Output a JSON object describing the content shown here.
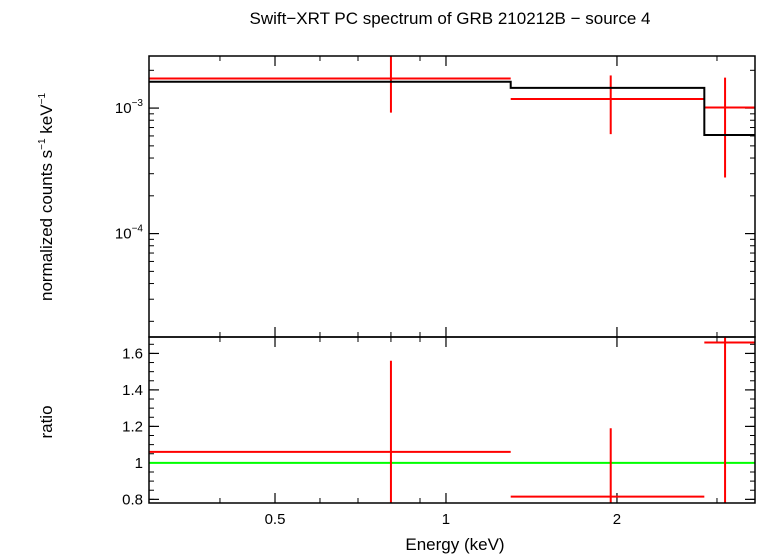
{
  "chart_data": {
    "title": "Swift−XRT PC spectrum of GRB 210212B − source 4",
    "xlabel": "Energy (keV)",
    "x_scale": "log",
    "xlim": [
      0.3,
      3.5
    ],
    "x_ticks": [
      {
        "value": 0.5,
        "label": "0.5"
      },
      {
        "value": 1,
        "label": "1"
      },
      {
        "value": 2,
        "label": "2"
      }
    ],
    "panels": [
      {
        "name": "spectrum",
        "type": "line",
        "ylabel_parts": {
          "base": "normalized counts s",
          "exp1": "−1",
          "mid": " keV",
          "exp2": "−1"
        },
        "y_scale": "log",
        "ylim": [
          1.5e-05,
          0.0026
        ],
        "y_ticks": [
          {
            "value": 0.001,
            "base": "10",
            "exp": "−3"
          },
          {
            "value": 0.0001,
            "base": "10",
            "exp": "−4"
          }
        ],
        "series": [
          {
            "kind": "data",
            "color": "#ff0000",
            "points": [
              {
                "x": 0.8,
                "xlo": 0.3,
                "xhi": 1.3,
                "y": 0.00172,
                "ylo": 0.00092,
                "yhi": 0.0026
              },
              {
                "x": 1.95,
                "xlo": 1.3,
                "xhi": 2.85,
                "y": 0.00118,
                "ylo": 0.00062,
                "yhi": 0.00182
              },
              {
                "x": 3.1,
                "xlo": 2.85,
                "xhi": 3.5,
                "y": 0.00101,
                "ylo": 0.00028,
                "yhi": 0.00175
              }
            ]
          },
          {
            "kind": "model",
            "color": "#000000",
            "steps": [
              {
                "xlo": 0.3,
                "xhi": 1.3,
                "y": 0.00162
              },
              {
                "xlo": 1.3,
                "xhi": 2.85,
                "y": 0.00145
              },
              {
                "xlo": 2.85,
                "xhi": 3.5,
                "y": 0.00061
              }
            ]
          }
        ]
      },
      {
        "name": "ratio",
        "type": "line",
        "ylabel": "ratio",
        "y_scale": "linear",
        "ylim": [
          0.78,
          1.69
        ],
        "y_ticks": [
          {
            "value": 0.8,
            "label": "0.8"
          },
          {
            "value": 1,
            "label": "1"
          },
          {
            "value": 1.2,
            "label": "1.2"
          },
          {
            "value": 1.4,
            "label": "1.4"
          },
          {
            "value": 1.6,
            "label": "1.6"
          }
        ],
        "reference_line": {
          "y": 1,
          "color": "#00ff00"
        },
        "series": [
          {
            "kind": "data",
            "color": "#ff0000",
            "points": [
              {
                "x": 0.8,
                "xlo": 0.3,
                "xhi": 1.3,
                "y": 1.06,
                "ylo": 0.78,
                "yhi": 1.56
              },
              {
                "x": 1.95,
                "xlo": 1.3,
                "xhi": 2.85,
                "y": 0.815,
                "ylo": 0.78,
                "yhi": 1.19
              },
              {
                "x": 3.1,
                "xlo": 2.85,
                "xhi": 3.5,
                "y": 1.66,
                "ylo": 0.78,
                "yhi": 1.69
              }
            ]
          }
        ]
      }
    ]
  }
}
